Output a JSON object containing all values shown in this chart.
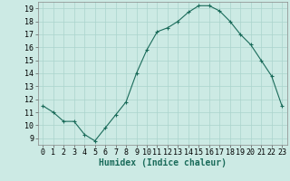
{
  "x": [
    0,
    1,
    2,
    3,
    4,
    5,
    6,
    7,
    8,
    9,
    10,
    11,
    12,
    13,
    14,
    15,
    16,
    17,
    18,
    19,
    20,
    21,
    22,
    23
  ],
  "y": [
    11.5,
    11.0,
    10.3,
    10.3,
    9.3,
    8.8,
    9.8,
    10.8,
    11.8,
    14.0,
    15.8,
    17.2,
    17.5,
    18.0,
    18.7,
    19.2,
    19.2,
    18.8,
    18.0,
    17.0,
    16.2,
    15.0,
    13.8,
    11.5
  ],
  "line_color": "#1a6b5a",
  "marker": "+",
  "marker_size": 3,
  "marker_lw": 0.8,
  "bg_color": "#cceae4",
  "grid_color": "#aad4cc",
  "xlabel": "Humidex (Indice chaleur)",
  "xlabel_fontsize": 7,
  "tick_fontsize": 6,
  "xlim": [
    -0.5,
    23.5
  ],
  "ylim": [
    8.5,
    19.5
  ],
  "yticks": [
    9,
    10,
    11,
    12,
    13,
    14,
    15,
    16,
    17,
    18,
    19
  ],
  "xticks": [
    0,
    1,
    2,
    3,
    4,
    5,
    6,
    7,
    8,
    9,
    10,
    11,
    12,
    13,
    14,
    15,
    16,
    17,
    18,
    19,
    20,
    21,
    22,
    23
  ]
}
